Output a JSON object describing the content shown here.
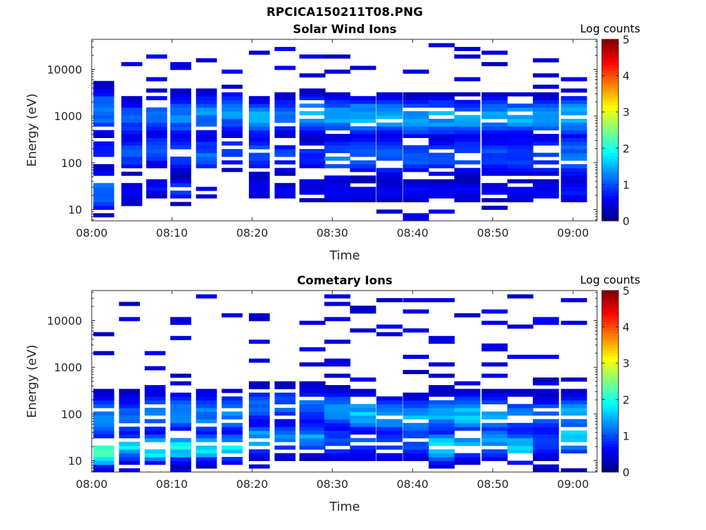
{
  "figure": {
    "title": "RPCICA150211T08.PNG"
  },
  "colors": {
    "background": "#ffffff",
    "axis": "#262626",
    "colormap": "jet"
  },
  "chart_data": [
    {
      "type": "heatmap",
      "title": "Solar Wind Ions",
      "xlabel": "Time",
      "ylabel": "Energy (eV)",
      "colorbar_label": "Log counts",
      "x_ticks": [
        "08:00",
        "08:10",
        "08:20",
        "08:30",
        "08:40",
        "08:50",
        "09:00"
      ],
      "xlim_minutes": [
        0,
        63
      ],
      "y_scale": "log",
      "y_ticks": [
        "10",
        "100",
        "1000",
        "10000"
      ],
      "ylim": [
        5.7,
        44000
      ],
      "colorbar": {
        "min": 0,
        "max": 5,
        "ticks": [
          "0",
          "1",
          "2",
          "3",
          "4",
          "5"
        ]
      },
      "grid": false,
      "description_of_data": "Energy-time spectrogram, log10 counts 0-5, jet colormap; values estimated per column",
      "columns": [
        {
          "start_min": 0.2,
          "peaks": [
            [
              25,
              1.2,
              0.9
            ],
            [
              180,
              0.8,
              0.7
            ],
            [
              1300,
              1.3,
              1.0
            ]
          ]
        },
        {
          "start_min": 3.7,
          "peaks": [
            [
              160,
              1.0,
              0.8
            ],
            [
              900,
              1.1,
              0.8
            ],
            [
              25,
              0.6,
              0.4
            ]
          ]
        },
        {
          "start_min": 6.8,
          "peaks": [
            [
              200,
              1.0,
              0.8
            ],
            [
              1100,
              1.2,
              0.9
            ],
            [
              30,
              0.7,
              0.4
            ]
          ]
        },
        {
          "start_min": 9.8,
          "peaks": [
            [
              170,
              1.1,
              0.8
            ],
            [
              1000,
              1.3,
              0.9
            ],
            [
              25,
              1.0,
              0.5
            ]
          ]
        },
        {
          "start_min": 13.0,
          "peaks": [
            [
              150,
              1.1,
              0.8
            ],
            [
              1100,
              1.3,
              0.9
            ],
            [
              25,
              0.6,
              0.4
            ]
          ]
        },
        {
          "start_min": 16.2,
          "peaks": [
            [
              180,
              1.0,
              0.8
            ],
            [
              1200,
              1.3,
              0.9
            ]
          ]
        },
        {
          "start_min": 19.6,
          "peaks": [
            [
              150,
              1.1,
              0.8
            ],
            [
              900,
              1.5,
              0.8
            ],
            [
              30,
              0.6,
              0.5
            ]
          ]
        },
        {
          "start_min": 22.8,
          "peaks": [
            [
              150,
              0.9,
              0.8
            ],
            [
              1000,
              1.2,
              0.8
            ],
            [
              25,
              0.6,
              0.3
            ]
          ]
        },
        {
          "start_min": 25.9,
          "peaks": [
            [
              150,
              0.8,
              0.7
            ],
            [
              1100,
              1.5,
              0.8
            ],
            [
              25,
              0.5,
              0.5
            ]
          ]
        },
        {
          "start_min": 29.0,
          "peaks": [
            [
              130,
              1.2,
              0.9
            ],
            [
              1000,
              1.5,
              0.8
            ],
            [
              25,
              0.6,
              0.5
            ]
          ]
        },
        {
          "start_min": 32.2,
          "peaks": [
            [
              160,
              1.2,
              0.9
            ],
            [
              1000,
              1.6,
              0.8
            ],
            [
              25,
              0.6,
              0.5
            ]
          ]
        },
        {
          "start_min": 35.5,
          "peaks": [
            [
              140,
              1.1,
              0.9
            ],
            [
              1000,
              1.6,
              0.8
            ],
            [
              25,
              0.6,
              0.5
            ]
          ]
        },
        {
          "start_min": 38.8,
          "peaks": [
            [
              150,
              1.1,
              0.9
            ],
            [
              900,
              1.5,
              0.8
            ],
            [
              25,
              0.6,
              0.5
            ]
          ]
        },
        {
          "start_min": 42.0,
          "peaks": [
            [
              130,
              1.0,
              0.9
            ],
            [
              950,
              1.5,
              0.8
            ],
            [
              25,
              0.6,
              0.5
            ]
          ]
        },
        {
          "start_min": 45.2,
          "peaks": [
            [
              150,
              1.0,
              0.9
            ],
            [
              900,
              1.4,
              0.8
            ],
            [
              25,
              0.6,
              0.5
            ]
          ]
        },
        {
          "start_min": 48.6,
          "peaks": [
            [
              140,
              1.0,
              0.9
            ],
            [
              1000,
              1.5,
              0.8
            ],
            [
              25,
              0.6,
              0.5
            ]
          ]
        },
        {
          "start_min": 51.8,
          "peaks": [
            [
              150,
              1.0,
              0.9
            ],
            [
              1000,
              1.6,
              0.8
            ],
            [
              25,
              0.6,
              0.5
            ]
          ]
        },
        {
          "start_min": 55.0,
          "peaks": [
            [
              140,
              1.0,
              0.9
            ],
            [
              950,
              1.5,
              0.8
            ],
            [
              25,
              0.6,
              0.5
            ]
          ]
        },
        {
          "start_min": 58.5,
          "peaks": [
            [
              150,
              1.2,
              1.0
            ],
            [
              1000,
              1.5,
              0.9
            ],
            [
              25,
              0.7,
              0.5
            ]
          ]
        }
      ]
    },
    {
      "type": "heatmap",
      "title": "Cometary Ions",
      "xlabel": "Time",
      "ylabel": "Energy (eV)",
      "colorbar_label": "Log counts",
      "x_ticks": [
        "08:00",
        "08:10",
        "08:20",
        "08:30",
        "08:40",
        "08:50",
        "09:00"
      ],
      "xlim_minutes": [
        0,
        63
      ],
      "y_scale": "log",
      "y_ticks": [
        "10",
        "100",
        "1000",
        "10000"
      ],
      "ylim": [
        5.7,
        44000
      ],
      "colorbar": {
        "min": 0,
        "max": 5,
        "ticks": [
          "0",
          "1",
          "2",
          "3",
          "4",
          "5"
        ]
      },
      "grid": false,
      "description_of_data": "Energy-time spectrogram, log10 counts 0-5, jet colormap; values estimated per column",
      "columns": [
        {
          "start_min": 0.2,
          "peaks": [
            [
              15,
              2.2,
              0.6
            ],
            [
              80,
              1.3,
              1.0
            ]
          ]
        },
        {
          "start_min": 3.4,
          "peaks": [
            [
              20,
              1.7,
              0.6
            ],
            [
              90,
              1.1,
              0.9
            ]
          ]
        },
        {
          "start_min": 6.6,
          "peaks": [
            [
              18,
              2.0,
              0.6
            ],
            [
              100,
              1.3,
              0.9
            ]
          ]
        },
        {
          "start_min": 9.8,
          "peaks": [
            [
              20,
              2.0,
              0.6
            ],
            [
              100,
              1.3,
              0.9
            ]
          ]
        },
        {
          "start_min": 13.0,
          "peaks": [
            [
              20,
              1.9,
              0.6
            ],
            [
              100,
              1.3,
              0.9
            ]
          ]
        },
        {
          "start_min": 16.2,
          "peaks": [
            [
              20,
              1.7,
              0.6
            ],
            [
              100,
              1.3,
              0.9
            ]
          ]
        },
        {
          "start_min": 19.6,
          "peaks": [
            [
              30,
              1.5,
              0.7
            ],
            [
              150,
              1.2,
              0.8
            ]
          ]
        },
        {
          "start_min": 22.8,
          "peaks": [
            [
              30,
              1.3,
              0.7
            ],
            [
              150,
              1.1,
              0.8
            ]
          ]
        },
        {
          "start_min": 25.9,
          "peaks": [
            [
              30,
              1.4,
              0.7
            ],
            [
              150,
              1.1,
              0.8
            ]
          ]
        },
        {
          "start_min": 29.0,
          "peaks": [
            [
              25,
              1.1,
              0.7
            ],
            [
              120,
              1.3,
              0.8
            ]
          ]
        },
        {
          "start_min": 32.2,
          "peaks": [
            [
              25,
              1.0,
              0.7
            ],
            [
              100,
              1.5,
              0.8
            ]
          ]
        },
        {
          "start_min": 35.5,
          "peaks": [
            [
              25,
              1.0,
              0.7
            ],
            [
              90,
              1.4,
              0.8
            ]
          ]
        },
        {
          "start_min": 38.8,
          "peaks": [
            [
              25,
              1.0,
              0.7
            ],
            [
              80,
              1.6,
              0.8
            ]
          ]
        },
        {
          "start_min": 42.0,
          "peaks": [
            [
              20,
              1.7,
              0.7
            ],
            [
              100,
              1.4,
              0.8
            ]
          ]
        },
        {
          "start_min": 45.2,
          "peaks": [
            [
              25,
              1.5,
              0.7
            ],
            [
              100,
              1.6,
              0.8
            ]
          ]
        },
        {
          "start_min": 48.6,
          "peaks": [
            [
              25,
              1.5,
              0.7
            ],
            [
              100,
              1.5,
              0.8
            ]
          ]
        },
        {
          "start_min": 51.8,
          "peaks": [
            [
              20,
              1.7,
              0.7
            ],
            [
              100,
              1.3,
              0.8
            ]
          ]
        },
        {
          "start_min": 55.0,
          "peaks": [
            [
              25,
              1.0,
              0.7
            ],
            [
              90,
              1.2,
              0.8
            ]
          ]
        },
        {
          "start_min": 58.5,
          "peaks": [
            [
              30,
              1.8,
              0.6
            ],
            [
              100,
              1.4,
              0.8
            ]
          ]
        }
      ]
    }
  ]
}
